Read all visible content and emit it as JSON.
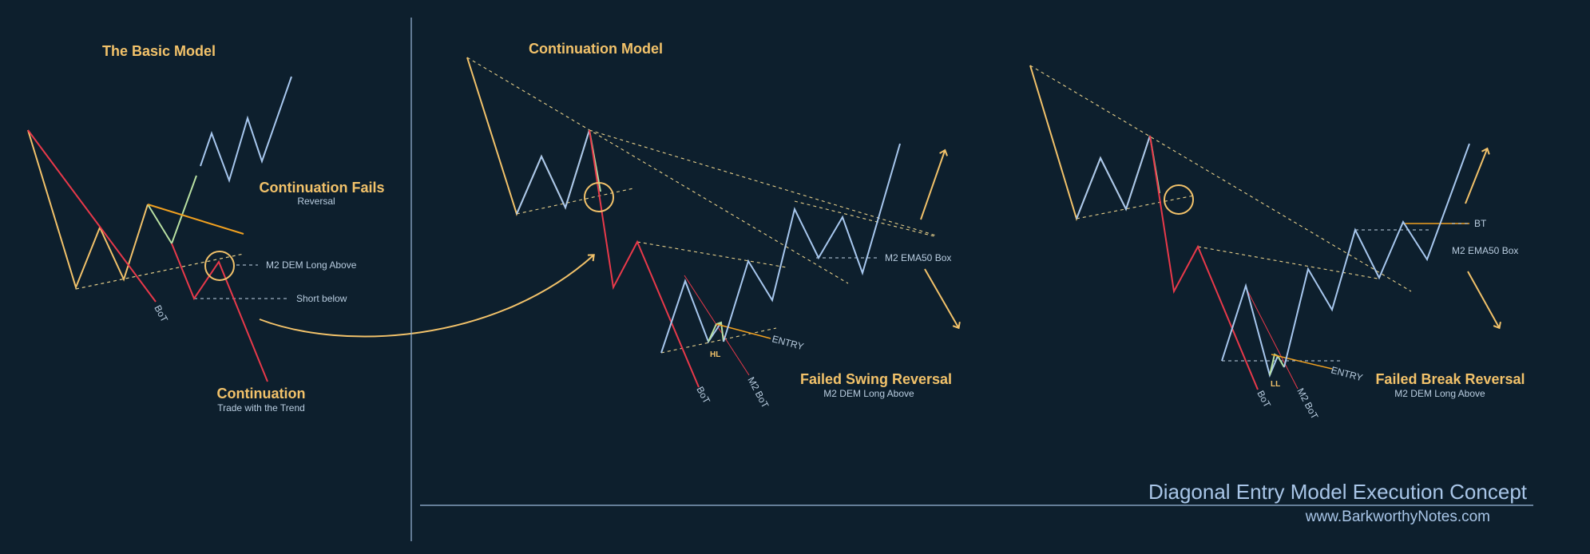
{
  "colors": {
    "background": "#0d1f2d",
    "price_up": "#f2c26a",
    "price_down": "#e8394a",
    "price_blue": "#a7c7ee",
    "price_green": "#b8e0a2",
    "orange_line": "#f0a020",
    "dashed_yellow": "#e6cf8a",
    "dashed_blue": "#c3d5e8",
    "divider": "#9ab8d8",
    "title": "#f2c26a",
    "label": "#b9cde0"
  },
  "basic_model": {
    "title": "The Basic Model",
    "continuation_fails_title": "Continuation Fails",
    "continuation_fails_sub": "Reversal",
    "m2_dem_label": "M2 DEM Long Above",
    "short_below_label": "Short below",
    "bot_label": "BoT",
    "continuation_title": "Continuation",
    "continuation_sub": "Trade with the Trend"
  },
  "continuation_model": {
    "title": "Continuation Model",
    "ema_label": "M2 EMA50 Box",
    "entry_label": "ENTRY",
    "hl_label": "HL",
    "bot_label": "BoT",
    "m2_bot_label": "M2 BoT",
    "failed_swing_title": "Failed Swing Reversal",
    "failed_swing_sub": "M2 DEM Long Above"
  },
  "break_model": {
    "bt_label": "BT",
    "ema_label": "M2 EMA50 Box",
    "entry_label": "ENTRY",
    "ll_label": "LL",
    "bot_label": "BoT",
    "m2_bot_label": "M2 BoT",
    "failed_break_title": "Failed Break Reversal",
    "failed_break_sub": "M2 DEM Long Above"
  },
  "footer": {
    "title": "Diagonal Entry Model Execution Concept",
    "url": "www.BarkworthyNotes.com"
  }
}
